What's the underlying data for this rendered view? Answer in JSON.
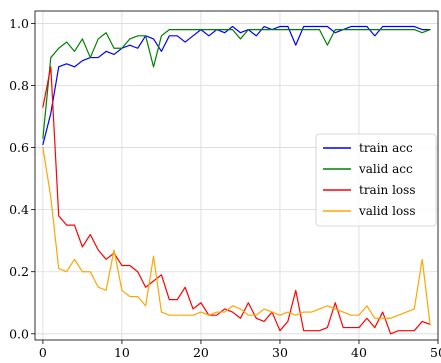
{
  "chart_data": {
    "type": "line",
    "title": "",
    "xlabel": "",
    "ylabel": "",
    "xlim": [
      -1,
      50
    ],
    "ylim": [
      -0.02,
      1.04
    ],
    "xticks": [
      0,
      10,
      20,
      30,
      40,
      50
    ],
    "yticks": [
      0.0,
      0.2,
      0.4,
      0.6,
      0.8,
      1.0
    ],
    "xtick_labels": [
      "0",
      "10",
      "20",
      "30",
      "40",
      "50"
    ],
    "ytick_labels": [
      "0.0",
      "0.2",
      "0.4",
      "0.6",
      "0.8",
      "1.0"
    ],
    "grid": true,
    "legend_position": "center-right",
    "x": [
      0,
      1,
      2,
      3,
      4,
      5,
      6,
      7,
      8,
      9,
      10,
      11,
      12,
      13,
      14,
      15,
      16,
      17,
      18,
      19,
      20,
      21,
      22,
      23,
      24,
      25,
      26,
      27,
      28,
      29,
      30,
      31,
      32,
      33,
      34,
      35,
      36,
      37,
      38,
      39,
      40,
      41,
      42,
      43,
      44,
      45,
      46,
      47,
      48,
      49
    ],
    "series": [
      {
        "name": "train acc",
        "color": "#0000ff",
        "values": [
          0.61,
          0.71,
          0.86,
          0.87,
          0.86,
          0.88,
          0.89,
          0.89,
          0.91,
          0.9,
          0.92,
          0.93,
          0.92,
          0.96,
          0.95,
          0.91,
          0.96,
          0.96,
          0.94,
          0.96,
          0.98,
          0.96,
          0.98,
          0.97,
          0.99,
          0.97,
          0.98,
          0.96,
          0.99,
          0.98,
          0.99,
          0.99,
          0.93,
          0.99,
          0.99,
          0.99,
          0.99,
          0.97,
          0.98,
          0.99,
          0.99,
          0.99,
          0.96,
          0.99,
          0.99,
          0.99,
          0.99,
          0.99,
          0.98,
          0.98
        ]
      },
      {
        "name": "valid acc",
        "color": "#008000",
        "values": [
          0.63,
          0.89,
          0.92,
          0.94,
          0.91,
          0.95,
          0.89,
          0.95,
          0.97,
          0.92,
          0.92,
          0.95,
          0.96,
          0.96,
          0.86,
          0.96,
          0.98,
          0.98,
          0.98,
          0.98,
          0.98,
          0.98,
          0.98,
          0.98,
          0.98,
          0.95,
          0.98,
          0.98,
          0.98,
          0.98,
          0.98,
          0.98,
          0.98,
          0.98,
          0.98,
          0.98,
          0.93,
          0.98,
          0.98,
          0.98,
          0.98,
          0.98,
          0.98,
          0.98,
          0.98,
          0.98,
          0.98,
          0.98,
          0.97,
          0.98
        ]
      },
      {
        "name": "train loss",
        "color": "#ff0000",
        "values": [
          0.73,
          0.86,
          0.38,
          0.35,
          0.35,
          0.28,
          0.32,
          0.27,
          0.24,
          0.26,
          0.22,
          0.22,
          0.2,
          0.15,
          0.17,
          0.19,
          0.11,
          0.11,
          0.15,
          0.08,
          0.1,
          0.06,
          0.06,
          0.08,
          0.07,
          0.05,
          0.1,
          0.05,
          0.04,
          0.07,
          0.01,
          0.04,
          0.14,
          0.01,
          0.01,
          0.01,
          0.02,
          0.1,
          0.02,
          0.02,
          0.02,
          0.05,
          0.02,
          0.07,
          0.0,
          0.01,
          0.01,
          0.01,
          0.04,
          0.03
        ]
      },
      {
        "name": "valid loss",
        "color": "#ffa500",
        "values": [
          0.6,
          0.44,
          0.21,
          0.2,
          0.24,
          0.2,
          0.2,
          0.15,
          0.14,
          0.27,
          0.14,
          0.12,
          0.12,
          0.09,
          0.25,
          0.07,
          0.06,
          0.06,
          0.06,
          0.06,
          0.07,
          0.06,
          0.07,
          0.07,
          0.09,
          0.08,
          0.06,
          0.06,
          0.08,
          0.07,
          0.06,
          0.07,
          0.06,
          0.07,
          0.07,
          0.08,
          0.09,
          0.08,
          0.07,
          0.06,
          0.06,
          0.09,
          0.05,
          0.05,
          0.05,
          0.06,
          0.07,
          0.08,
          0.24,
          0.03
        ]
      }
    ]
  }
}
